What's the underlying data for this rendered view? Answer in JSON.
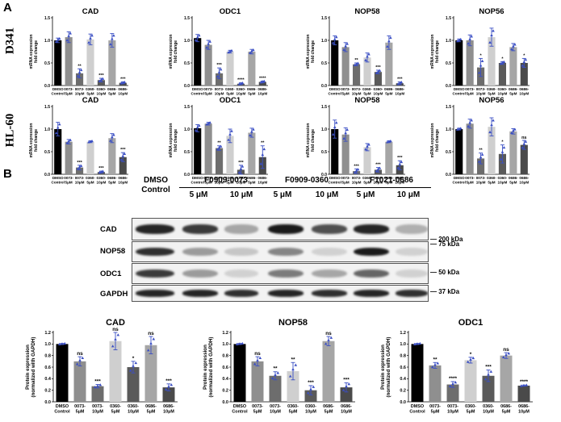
{
  "panel_a_label": "A",
  "panel_b_label": "B",
  "row_labels": [
    "D341",
    "HL-60"
  ],
  "charts_ylabel": "mRNA expression\nfold change",
  "charts_categories": [
    "DMSO\nControl",
    "0073-\n5μM",
    "0073-\n10μM",
    "0360-\n5μM",
    "0360-\n10μM",
    "0686-\n5μM",
    "0686-\n10μM"
  ],
  "bar_colors": [
    "#000000",
    "#8f8f8f",
    "#6d6d6d",
    "#cfcfcf",
    "#5a5a5a",
    "#a6a6a6",
    "#4a4a4a"
  ],
  "point_color": "#3b4fc4",
  "chart_data": [
    {
      "type": "bar",
      "title": "CAD",
      "row": "D341",
      "ylim": [
        0,
        1.5
      ],
      "yticks": [
        "0.0",
        "0.5",
        "1.0",
        "1.5"
      ],
      "values": [
        1.0,
        1.07,
        0.27,
        1.02,
        0.12,
        1.0,
        0.06
      ],
      "errors": [
        0.05,
        0.12,
        0.1,
        0.12,
        0.04,
        0.15,
        0.02
      ],
      "annotations": [
        "",
        "",
        "**",
        "",
        "***",
        "",
        "***"
      ]
    },
    {
      "type": "bar",
      "title": "ODC1",
      "row": "D341",
      "ylim": [
        0,
        1.5
      ],
      "yticks": [
        "0.0",
        "0.5",
        "1.0",
        "1.5"
      ],
      "values": [
        1.05,
        0.9,
        0.27,
        0.75,
        0.04,
        0.75,
        0.08
      ],
      "errors": [
        0.08,
        0.1,
        0.12,
        0.03,
        0.02,
        0.05,
        0.02
      ],
      "annotations": [
        "",
        "",
        "***",
        "",
        "****",
        "",
        "****"
      ]
    },
    {
      "type": "bar",
      "title": "NOP58",
      "row": "D341",
      "ylim": [
        0,
        1.5
      ],
      "yticks": [
        "0.0",
        "0.5",
        "1.0",
        "1.5"
      ],
      "values": [
        1.0,
        0.85,
        0.47,
        0.62,
        0.3,
        0.95,
        0.05
      ],
      "errors": [
        0.1,
        0.1,
        0.03,
        0.1,
        0.04,
        0.15,
        0.03
      ],
      "annotations": [
        "",
        "",
        "**",
        "",
        "***",
        "",
        "***"
      ]
    },
    {
      "type": "bar",
      "title": "NOP56",
      "row": "D341",
      "ylim": [
        0,
        1.5
      ],
      "yticks": [
        "0.0",
        "0.5",
        "1.0",
        "1.5"
      ],
      "values": [
        1.0,
        1.0,
        0.4,
        1.07,
        0.5,
        0.85,
        0.5
      ],
      "errors": [
        0.03,
        0.12,
        0.2,
        0.2,
        0.03,
        0.08,
        0.1
      ],
      "annotations": [
        "",
        "",
        "*",
        "",
        "*",
        "",
        "*"
      ]
    },
    {
      "type": "bar",
      "title": "CAD",
      "row": "HL-60",
      "ylim": [
        0,
        1.5
      ],
      "yticks": [
        "0.0",
        "0.5",
        "1.0",
        "1.5"
      ],
      "values": [
        1.0,
        0.72,
        0.15,
        0.72,
        0.05,
        0.8,
        0.38
      ],
      "errors": [
        0.15,
        0.05,
        0.05,
        0.02,
        0.02,
        0.1,
        0.1
      ],
      "annotations": [
        "",
        "",
        "***",
        "",
        "***",
        "",
        "***"
      ]
    },
    {
      "type": "bar",
      "title": "ODC1",
      "row": "HL-60",
      "ylim": [
        0,
        1.5
      ],
      "yticks": [
        "0.0",
        "0.5",
        "1.0",
        "1.5"
      ],
      "values": [
        1.02,
        1.12,
        0.58,
        0.85,
        0.1,
        0.92,
        0.38
      ],
      "errors": [
        0.08,
        0.03,
        0.05,
        0.15,
        0.1,
        0.1,
        0.25
      ],
      "annotations": [
        "",
        "",
        "**",
        "",
        "***",
        "",
        "**"
      ]
    },
    {
      "type": "bar",
      "title": "NOP58",
      "row": "HL-60",
      "ylim": [
        0,
        1.5
      ],
      "yticks": [
        "0.0",
        "0.5",
        "1.0",
        "1.5"
      ],
      "values": [
        1.0,
        0.88,
        0.07,
        0.6,
        0.1,
        0.72,
        0.2
      ],
      "errors": [
        0.2,
        0.15,
        0.05,
        0.08,
        0.05,
        0.02,
        0.1
      ],
      "annotations": [
        "",
        "",
        "***",
        "",
        "***",
        "",
        "***"
      ]
    },
    {
      "type": "bar",
      "title": "NOP56",
      "row": "HL-60",
      "ylim": [
        0,
        1.5
      ],
      "yticks": [
        "0.0",
        "0.5",
        "1.0",
        "1.5"
      ],
      "values": [
        1.0,
        1.12,
        0.35,
        1.05,
        0.45,
        0.95,
        0.65
      ],
      "errors": [
        0.02,
        0.1,
        0.12,
        0.2,
        0.2,
        0.06,
        0.1
      ],
      "annotations": [
        "",
        "",
        "**",
        "",
        "*",
        "",
        "ns"
      ]
    },
    {
      "type": "bar",
      "title": "CAD",
      "row": "blot",
      "ylim": [
        0,
        1.2
      ],
      "yticks": [
        "0.0",
        "0.2",
        "0.4",
        "0.6",
        "0.8",
        "1.0",
        "1.2"
      ],
      "values": [
        1.0,
        0.7,
        0.27,
        1.05,
        0.6,
        0.98,
        0.25
      ],
      "errors": [
        0.01,
        0.08,
        0.03,
        0.15,
        0.1,
        0.15,
        0.06
      ],
      "annotations": [
        "",
        "ns",
        "***",
        "ns",
        "*",
        "ns",
        "***"
      ]
    },
    {
      "type": "bar",
      "title": "NOP58",
      "row": "blot",
      "ylim": [
        0,
        1.2
      ],
      "yticks": [
        "0.0",
        "0.2",
        "0.4",
        "0.6",
        "0.8",
        "1.0",
        "1.2"
      ],
      "values": [
        1.0,
        0.7,
        0.45,
        0.53,
        0.2,
        1.05,
        0.25
      ],
      "errors": [
        0.01,
        0.08,
        0.07,
        0.15,
        0.08,
        0.08,
        0.08
      ],
      "annotations": [
        "",
        "ns",
        "**",
        "**",
        "***",
        "ns",
        "***"
      ]
    },
    {
      "type": "bar",
      "title": "ODC1",
      "row": "blot",
      "ylim": [
        0,
        1.2
      ],
      "yticks": [
        "0.0",
        "0.2",
        "0.4",
        "0.6",
        "0.8",
        "1.0",
        "1.2"
      ],
      "values": [
        1.0,
        0.63,
        0.3,
        0.72,
        0.45,
        0.8,
        0.28
      ],
      "errors": [
        0.01,
        0.05,
        0.05,
        0.05,
        0.1,
        0.05,
        0.01
      ],
      "annotations": [
        "",
        "**",
        "****",
        "*",
        "***",
        "ns",
        "****"
      ]
    }
  ],
  "blot_ylabel": "Protein expression\n(normalized with GAPDH)",
  "blot": {
    "dmso_header": "DMSO\nControl",
    "compounds": [
      "F0909-0073",
      "F0909-0360",
      "F1021-0686"
    ],
    "doses": [
      "5 μM",
      "10 μM"
    ],
    "proteins": [
      "CAD",
      "NOP58",
      "ODC1",
      "GAPDH"
    ],
    "markers": [
      "200 kDa",
      "75 kDa",
      "50 kDa",
      "37 kDa"
    ],
    "intensities": [
      [
        0.9,
        0.8,
        0.3,
        0.95,
        0.7,
        0.9,
        0.25
      ],
      [
        0.85,
        0.35,
        0.15,
        0.45,
        0.1,
        0.95,
        0.1
      ],
      [
        0.8,
        0.35,
        0.1,
        0.5,
        0.3,
        0.6,
        0.1
      ],
      [
        0.9,
        0.9,
        0.85,
        0.9,
        0.85,
        0.9,
        0.85
      ]
    ]
  }
}
